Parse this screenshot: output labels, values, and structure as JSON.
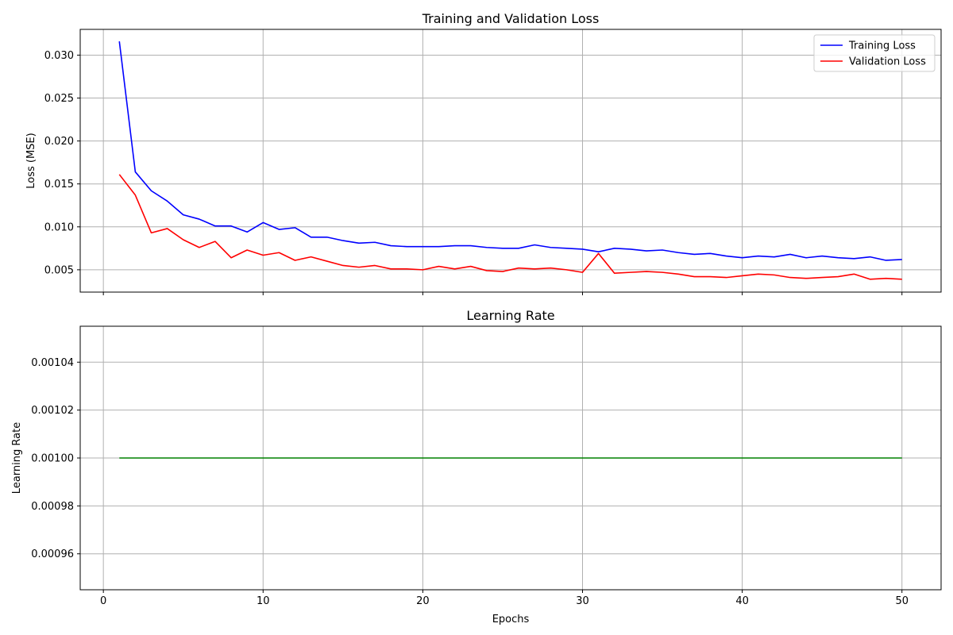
{
  "chart_data": [
    {
      "type": "line",
      "title": "Training and Validation Loss",
      "xlabel": "",
      "ylabel": "Loss (MSE)",
      "xlim": [
        -1.45,
        52.45
      ],
      "ylim": [
        0.0024,
        0.033
      ],
      "xticks": [
        0,
        10,
        20,
        30,
        40,
        50
      ],
      "xtick_labels": [
        "",
        "",
        "",
        "",
        "",
        ""
      ],
      "yticks": [
        0.005,
        0.01,
        0.015,
        0.02,
        0.025,
        0.03
      ],
      "ytick_labels": [
        "0.005",
        "0.010",
        "0.015",
        "0.020",
        "0.025",
        "0.030"
      ],
      "grid": true,
      "legend": "top-right",
      "x": [
        1,
        2,
        3,
        4,
        5,
        6,
        7,
        8,
        9,
        10,
        11,
        12,
        13,
        14,
        15,
        16,
        17,
        18,
        19,
        20,
        21,
        22,
        23,
        24,
        25,
        26,
        27,
        28,
        29,
        30,
        31,
        32,
        33,
        34,
        35,
        36,
        37,
        38,
        39,
        40,
        41,
        42,
        43,
        44,
        45,
        46,
        47,
        48,
        49,
        50
      ],
      "series": [
        {
          "name": "Training Loss",
          "color": "#0000ff",
          "values": [
            0.0316,
            0.0164,
            0.0142,
            0.013,
            0.0114,
            0.0109,
            0.0101,
            0.0101,
            0.0094,
            0.0105,
            0.0097,
            0.0099,
            0.0088,
            0.0088,
            0.0084,
            0.0081,
            0.0082,
            0.0078,
            0.0077,
            0.0077,
            0.0077,
            0.0078,
            0.0078,
            0.0076,
            0.0075,
            0.0075,
            0.0079,
            0.0076,
            0.0075,
            0.0074,
            0.0071,
            0.0075,
            0.0074,
            0.0072,
            0.0073,
            0.007,
            0.0068,
            0.0069,
            0.0066,
            0.0064,
            0.0066,
            0.0065,
            0.0068,
            0.0064,
            0.0066,
            0.0064,
            0.0063,
            0.0065,
            0.0061,
            0.0062
          ]
        },
        {
          "name": "Validation Loss",
          "color": "#ff0000",
          "values": [
            0.0161,
            0.0137,
            0.0093,
            0.0098,
            0.0085,
            0.0076,
            0.0083,
            0.0064,
            0.0073,
            0.0067,
            0.007,
            0.0061,
            0.0065,
            0.006,
            0.0055,
            0.0053,
            0.0055,
            0.0051,
            0.0051,
            0.005,
            0.0054,
            0.0051,
            0.0054,
            0.0049,
            0.0048,
            0.0052,
            0.0051,
            0.0052,
            0.005,
            0.0047,
            0.0069,
            0.0046,
            0.0047,
            0.0048,
            0.0047,
            0.0045,
            0.0042,
            0.0042,
            0.0041,
            0.0043,
            0.0045,
            0.0044,
            0.0041,
            0.004,
            0.0041,
            0.0042,
            0.0045,
            0.0039,
            0.004,
            0.0039
          ]
        }
      ]
    },
    {
      "type": "line",
      "title": "Learning Rate",
      "xlabel": "Epochs",
      "ylabel": "Learning Rate",
      "xlim": [
        -1.45,
        52.45
      ],
      "ylim": [
        0.000945,
        0.001055
      ],
      "xticks": [
        0,
        10,
        20,
        30,
        40,
        50
      ],
      "xtick_labels": [
        "0",
        "10",
        "20",
        "30",
        "40",
        "50"
      ],
      "yticks": [
        0.00096,
        0.00098,
        0.001,
        0.00102,
        0.00104
      ],
      "ytick_labels": [
        "0.00096",
        "0.00098",
        "0.00100",
        "0.00102",
        "0.00104"
      ],
      "grid": true,
      "x": [
        1,
        50
      ],
      "series": [
        {
          "color": "#008000",
          "values": [
            0.001,
            0.001
          ]
        }
      ]
    }
  ]
}
